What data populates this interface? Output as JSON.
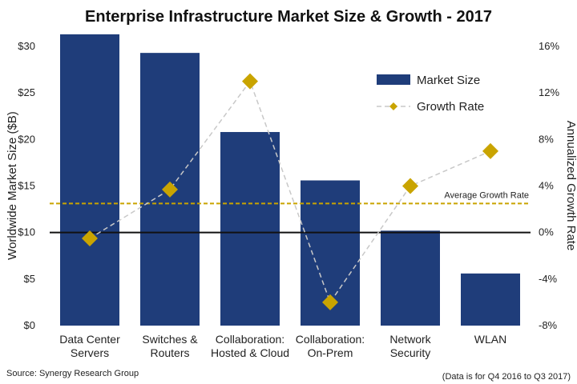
{
  "chart_data": {
    "type": "bar",
    "title": "Enterprise Infrastructure Market Size & Growth - 2017",
    "categories": [
      [
        "Data Center",
        "Servers"
      ],
      [
        "Switches &",
        "Routers"
      ],
      [
        "Collaboration:",
        "Hosted & Cloud"
      ],
      [
        "Collaboration:",
        "On-Prem"
      ],
      [
        "Network",
        "Security"
      ],
      [
        "WLAN"
      ]
    ],
    "series": [
      {
        "name": "Market Size",
        "type": "bar",
        "axis": "left",
        "color": "#1f3d7a",
        "values": [
          31.3,
          29.3,
          20.8,
          15.6,
          10.2,
          5.6
        ]
      },
      {
        "name": "Growth Rate",
        "type": "line",
        "axis": "right",
        "color": "#c9a400",
        "line_color": "#c8c8c8",
        "values": [
          -0.5,
          3.7,
          13.0,
          -6.0,
          4.0,
          7.0
        ]
      }
    ],
    "ylabel": "Worldwide Market Size ($B)",
    "y2label": "Annualized Growth Rate",
    "ylim": [
      0,
      30
    ],
    "y2lim": [
      -8,
      16
    ],
    "yticks": [
      "$0",
      "$5",
      "$10",
      "$15",
      "$20",
      "$25",
      "$30"
    ],
    "y2ticks": [
      "-8%",
      "-4%",
      "0%",
      "4%",
      "8%",
      "12%",
      "16%"
    ],
    "average_growth": {
      "label": "Average Growth Rate",
      "value": 2.5,
      "color": "#c9a400"
    },
    "legend_position": "top-right",
    "source": "Source: Synergy Research Group",
    "footnote": "(Data is for Q4 2016 to Q3 2017)"
  }
}
